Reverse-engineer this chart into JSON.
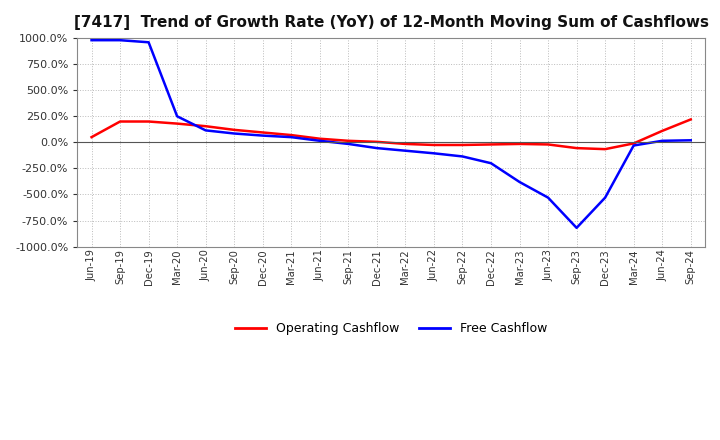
{
  "title": "[7417]  Trend of Growth Rate (YoY) of 12-Month Moving Sum of Cashflows",
  "title_fontsize": 11,
  "ylim": [
    -1000,
    1000
  ],
  "yticks": [
    -1000,
    -750,
    -500,
    -250,
    0,
    250,
    500,
    750,
    1000
  ],
  "background_color": "#ffffff",
  "plot_bg_color": "#ffffff",
  "grid_color": "#bbbbbb",
  "operating_color": "#ff0000",
  "free_color": "#0000ff",
  "legend_labels": [
    "Operating Cashflow",
    "Free Cashflow"
  ],
  "x_labels": [
    "Jun-19",
    "Sep-19",
    "Dec-19",
    "Mar-20",
    "Jun-20",
    "Sep-20",
    "Dec-20",
    "Mar-21",
    "Jun-21",
    "Sep-21",
    "Dec-21",
    "Mar-22",
    "Jun-22",
    "Sep-22",
    "Dec-22",
    "Mar-23",
    "Jun-23",
    "Sep-23",
    "Dec-23",
    "Mar-24",
    "Jun-24",
    "Sep-24"
  ],
  "operating_cashflow": [
    50,
    200,
    200,
    180,
    155,
    120,
    95,
    70,
    35,
    15,
    5,
    -15,
    -25,
    -25,
    -20,
    -15,
    -20,
    -55,
    -65,
    -10,
    110,
    220
  ],
  "free_cashflow": [
    980,
    980,
    960,
    250,
    115,
    85,
    65,
    50,
    15,
    -15,
    -55,
    -80,
    -105,
    -135,
    -200,
    -380,
    -530,
    -820,
    -530,
    -30,
    15,
    20
  ]
}
